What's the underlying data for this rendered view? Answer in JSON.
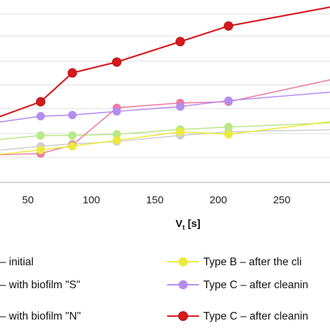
{
  "chart_data": {
    "type": "line",
    "xlabel_main": "V",
    "xlabel_sub": "t",
    "xlabel_unit": " [s]",
    "xlim": [
      28,
      288
    ],
    "ylim": [
      0,
      7
    ],
    "x_ticks": [
      50,
      100,
      150,
      200,
      250
    ],
    "x_tick_labels": [
      "50",
      "100",
      "150",
      "200",
      "250"
    ],
    "grid": true,
    "legend_position": "bottom",
    "series": [
      {
        "name": "– initial",
        "color": "#d0d0d0",
        "x": [
          0,
          60,
          85,
          120,
          170,
          208,
          300
        ],
        "y": [
          1.2,
          1.5,
          1.6,
          1.7,
          1.95,
          2.1,
          2.2
        ]
      },
      {
        "name": "– with biofilm \"S\"",
        "color": "#b8e986",
        "x": [
          0,
          60,
          85,
          120,
          170,
          208,
          300
        ],
        "y": [
          1.65,
          1.95,
          1.95,
          2.0,
          2.2,
          2.3,
          2.5
        ]
      },
      {
        "name": "– with biofilm \"N\"",
        "color": "#f07aa0",
        "x": [
          0,
          60,
          85,
          120,
          170,
          208,
          300
        ],
        "y": [
          1.1,
          1.2,
          1.55,
          3.1,
          3.3,
          3.35,
          4.4
        ]
      },
      {
        "name": "Type B – after the cli",
        "color": "#ecea3a",
        "x": [
          0,
          60,
          85,
          120,
          170,
          208,
          300
        ],
        "y": [
          1.0,
          1.35,
          1.5,
          1.75,
          2.1,
          2.0,
          2.6
        ]
      },
      {
        "name": "Type C – after cleanin",
        "color": "#b58cf0",
        "x": [
          0,
          60,
          85,
          120,
          170,
          208,
          300
        ],
        "y": [
          2.3,
          2.75,
          2.8,
          2.95,
          3.15,
          3.4,
          3.8
        ]
      },
      {
        "name": "Type C – after cleanin",
        "color": "#d7191c",
        "x": [
          0,
          60,
          85,
          120,
          170,
          208,
          300
        ],
        "y": [
          2.2,
          3.35,
          4.55,
          5.0,
          5.85,
          6.5,
          7.4
        ]
      }
    ]
  }
}
